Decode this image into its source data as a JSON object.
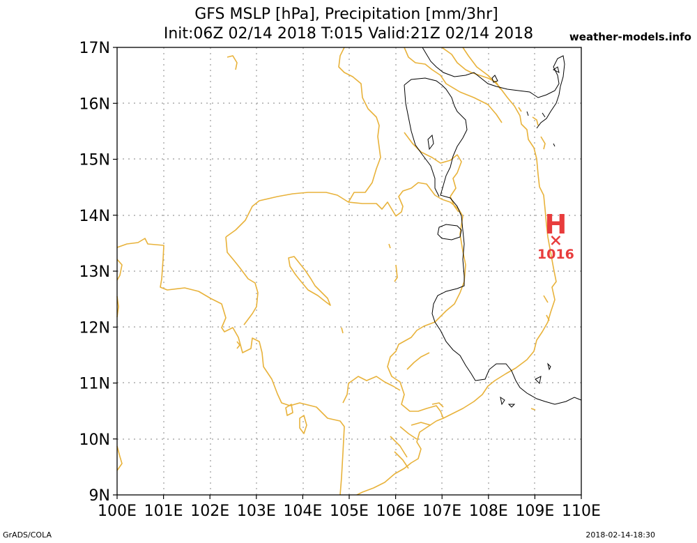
{
  "header": {
    "title_line1": "GFS MSLP [hPa], Precipitation [mm/3hr]",
    "title_line2": "Init:06Z 02/14 2018 T:015 Valid:21Z 02/14 2018",
    "site": "weather-models.info"
  },
  "footer": {
    "left": "GrADS/COLA",
    "right": "2018-02-14-18:30"
  },
  "map": {
    "lon_range": [
      100,
      110
    ],
    "lat_range": [
      9,
      17
    ],
    "lon_labels": [
      "100E",
      "101E",
      "102E",
      "103E",
      "104E",
      "105E",
      "106E",
      "107E",
      "108E",
      "109E",
      "110E"
    ],
    "lat_labels": [
      "17N",
      "16N",
      "15N",
      "14N",
      "13N",
      "12N",
      "11N",
      "10N",
      "9N"
    ],
    "grid": true,
    "high_marker": {
      "letter": "H",
      "value": "1016",
      "lon": 109.45,
      "lat": 13.55
    },
    "colors": {
      "coast": "#e8b23a",
      "isobar": "#000000",
      "high": "#e83c3c",
      "grid": "#999999"
    }
  }
}
